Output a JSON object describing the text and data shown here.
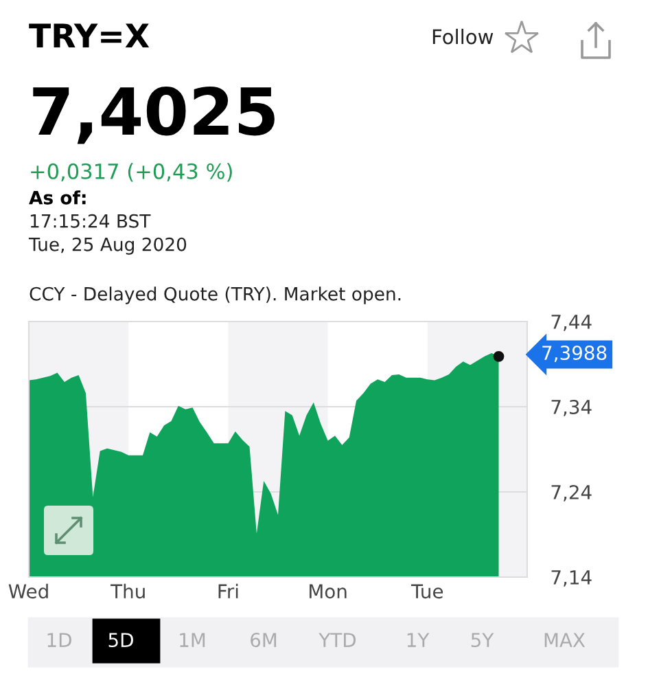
{
  "chart_data": {
    "type": "area",
    "title": "TRY=X",
    "annotations": [
      "7,4025",
      "+0,0317 (+0,43 %)",
      "As of:",
      "17:15:24 BST",
      "Tue, 25 Aug 2020",
      "CCY - Delayed Quote (TRY). Market open.",
      "Follow",
      "1D",
      "5D",
      "1M",
      "6M",
      "YTD",
      "1Y",
      "5Y",
      "MAX",
      "7,3988"
    ],
    "categories": [
      "Wed",
      null,
      null,
      null,
      null,
      null,
      null,
      null,
      null,
      null,
      null,
      null,
      null,
      null,
      "Thu",
      null,
      null,
      null,
      null,
      null,
      null,
      null,
      null,
      null,
      null,
      null,
      null,
      null,
      "Fri",
      null,
      null,
      null,
      null,
      null,
      null,
      null,
      null,
      null,
      null,
      null,
      null,
      null,
      "Mon",
      null,
      null,
      null,
      null,
      null,
      null,
      null,
      null,
      null,
      null,
      null,
      null,
      null,
      "Tue",
      null,
      null,
      null,
      null,
      null,
      null,
      null,
      null,
      null,
      null,
      null,
      null,
      null
    ],
    "series": [
      {
        "color": "#0fa35b",
        "values": [
          7.371,
          7.372,
          7.374,
          7.376,
          7.38,
          7.369,
          7.374,
          7.377,
          7.356,
          7.234,
          7.288,
          7.291,
          7.289,
          7.287,
          7.283,
          7.283,
          7.283,
          7.31,
          7.305,
          7.318,
          7.323,
          7.341,
          7.337,
          7.339,
          7.322,
          7.31,
          7.297,
          7.297,
          7.297,
          7.311,
          7.301,
          7.293,
          7.191,
          7.253,
          7.238,
          7.213,
          7.335,
          7.33,
          7.306,
          7.33,
          7.345,
          7.32,
          7.3,
          7.306,
          7.295,
          7.304,
          7.347,
          7.356,
          7.367,
          7.372,
          7.369,
          7.377,
          7.378,
          7.374,
          7.374,
          7.374,
          7.372,
          7.371,
          7.374,
          7.378,
          7.387,
          7.393,
          7.389,
          7.394,
          7.399,
          7.403,
          7.399,
          null,
          null,
          null
        ]
      }
    ],
    "bands": [
      {
        "axis": "x",
        "from": "Thu",
        "to": "Fri",
        "color": "#ffffff"
      },
      {
        "axis": "x",
        "from": "Mon",
        "to": "Tue",
        "color": "#ffffff"
      }
    ],
    "ylim": [
      7.14,
      7.44
    ],
    "yticks": [
      {
        "value": 7.14,
        "label": "7,14"
      },
      {
        "value": 7.24,
        "label": "7,24"
      },
      {
        "value": 7.34,
        "label": "7,34"
      },
      {
        "value": 7.44,
        "label": "7,44"
      }
    ],
    "grid": "y",
    "legend": false
  }
}
